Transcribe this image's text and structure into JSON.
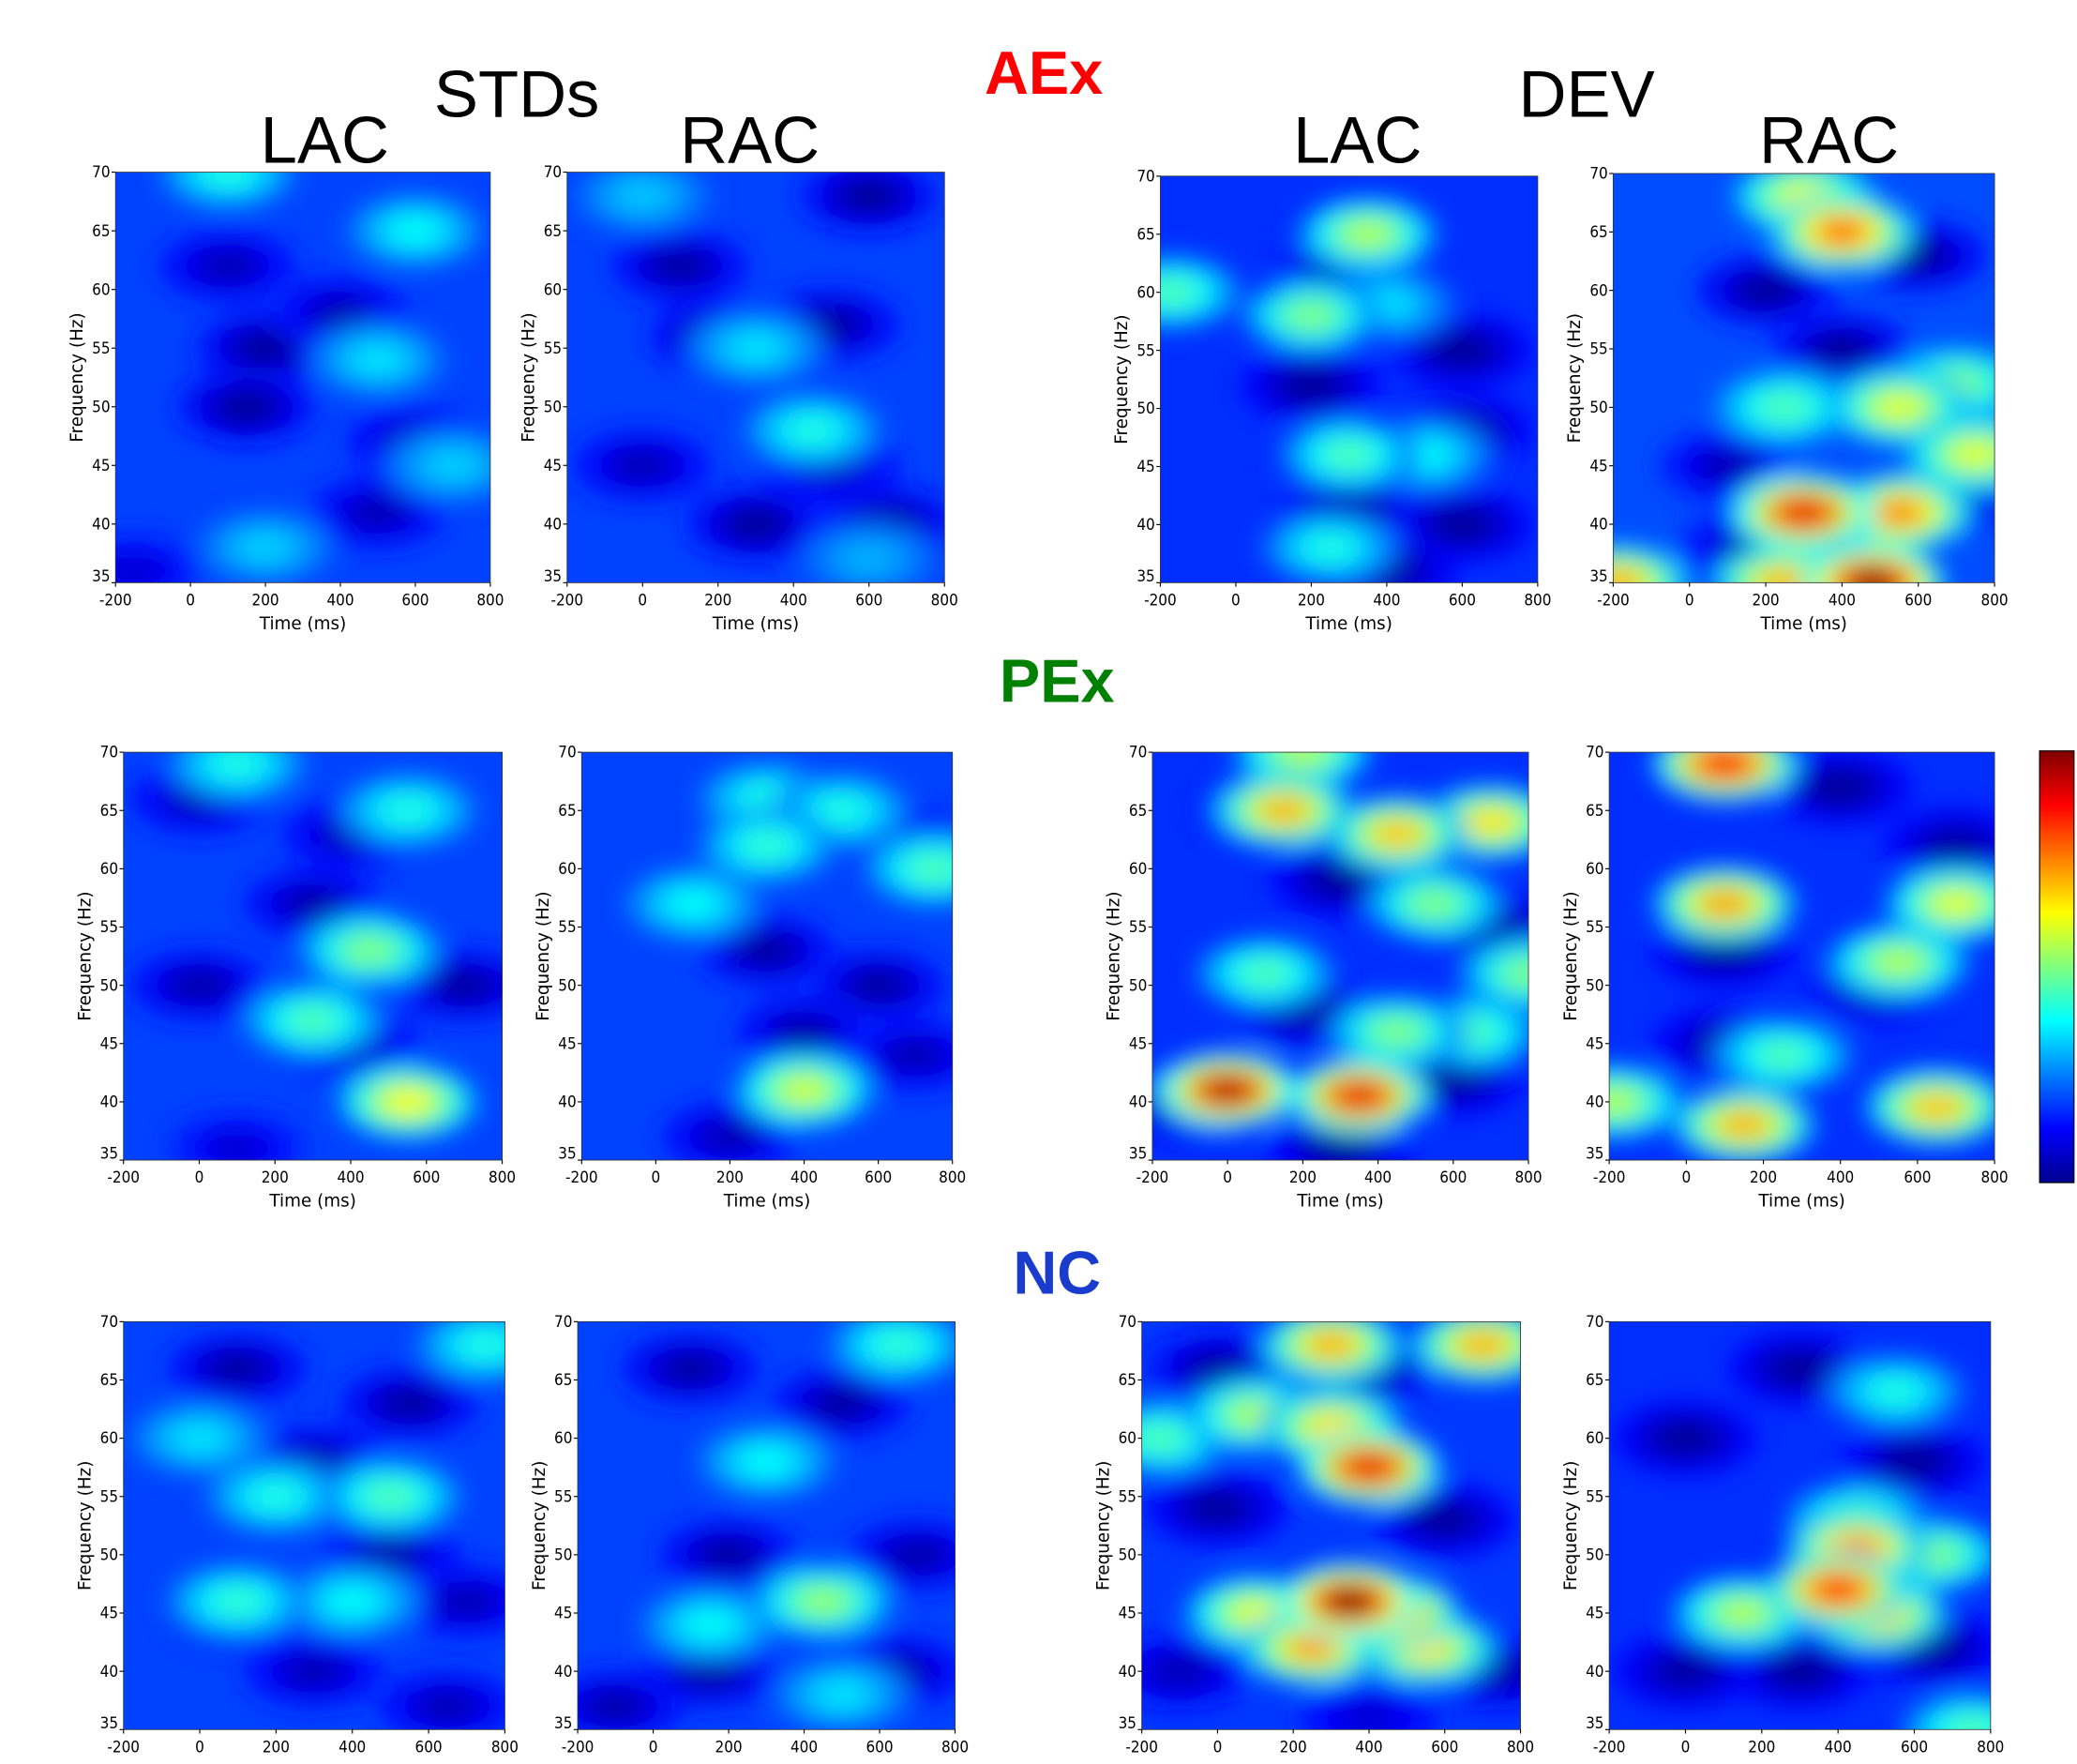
{
  "figure": {
    "groups": [
      "AEx",
      "PEx",
      "NC"
    ],
    "conditions": [
      "STDs",
      "DEV"
    ],
    "columns": [
      "LAC",
      "RAC",
      "LAC",
      "RAC"
    ]
  },
  "chart_data": [
    {
      "type": "heatmap",
      "xlabel": "Time (ms)",
      "ylabel": "Frequency (Hz)",
      "xlim": [
        -200,
        800
      ],
      "ylim": [
        35,
        70
      ],
      "xticks": [
        -200,
        0,
        200,
        400,
        600,
        800
      ],
      "yticks": [
        35,
        40,
        45,
        50,
        55,
        60,
        65,
        70
      ],
      "base": 0.19,
      "hotspots": [
        [
          200,
          55,
          0.02
        ],
        [
          150,
          50,
          0.02
        ],
        [
          400,
          58,
          0.05
        ],
        [
          100,
          62,
          0.05
        ],
        [
          600,
          47,
          0.05
        ],
        [
          500,
          41,
          0.05
        ],
        [
          -150,
          36,
          0.08
        ],
        [
          100,
          70,
          0.4
        ],
        [
          600,
          65,
          0.38
        ],
        [
          500,
          54,
          0.35
        ],
        [
          200,
          38,
          0.33
        ],
        [
          700,
          45,
          0.33
        ]
      ]
    },
    {
      "type": "heatmap",
      "xlabel": "Time (ms)",
      "ylabel": "Frequency (Hz)",
      "xlim": [
        -200,
        800
      ],
      "ylim": [
        35,
        70
      ],
      "xticks": [
        -200,
        0,
        200,
        400,
        600,
        800
      ],
      "yticks": [
        35,
        40,
        45,
        50,
        55,
        60,
        65,
        70
      ],
      "base": 0.19,
      "hotspots": [
        [
          600,
          68,
          0.02
        ],
        [
          200,
          56,
          0.02
        ],
        [
          500,
          57,
          0.03
        ],
        [
          100,
          62,
          0.03
        ],
        [
          300,
          40,
          0.02
        ],
        [
          650,
          40,
          0.02
        ],
        [
          0,
          45,
          0.05
        ],
        [
          500,
          45,
          0.05
        ],
        [
          600,
          37,
          0.3
        ],
        [
          0,
          68,
          0.32
        ],
        [
          300,
          55,
          0.35
        ],
        [
          450,
          48,
          0.4
        ]
      ]
    },
    {
      "type": "heatmap",
      "xlabel": "Time (ms)",
      "ylabel": "Frequency (Hz)",
      "xlim": [
        -200,
        800
      ],
      "ylim": [
        35,
        70
      ],
      "xticks": [
        -200,
        0,
        200,
        400,
        600,
        800
      ],
      "yticks": [
        35,
        40,
        45,
        50,
        55,
        60,
        65,
        70
      ],
      "base": 0.17,
      "hotspots": [
        [
          300,
          62,
          0.02
        ],
        [
          600,
          55,
          0.02
        ],
        [
          200,
          52,
          0.02
        ],
        [
          600,
          48,
          0.02
        ],
        [
          300,
          41,
          0.02
        ],
        [
          600,
          40,
          0.02
        ],
        [
          400,
          36,
          0.02
        ],
        [
          400,
          59,
          0.35
        ],
        [
          500,
          46,
          0.38
        ],
        [
          250,
          38,
          0.4
        ],
        [
          300,
          46,
          0.45
        ],
        [
          -170,
          60,
          0.45
        ],
        [
          200,
          58,
          0.5
        ],
        [
          350,
          65,
          0.55
        ]
      ]
    },
    {
      "type": "heatmap",
      "xlabel": "Time (ms)",
      "ylabel": "Frequency (Hz)",
      "xlim": [
        -200,
        800
      ],
      "ylim": [
        35,
        70
      ],
      "xticks": [
        -200,
        0,
        200,
        400,
        600,
        800
      ],
      "yticks": [
        35,
        40,
        45,
        50,
        55,
        60,
        65,
        70
      ],
      "base": 0.2,
      "hotspots": [
        [
          200,
          60,
          0.02
        ],
        [
          600,
          63,
          0.02
        ],
        [
          400,
          55,
          0.02
        ],
        [
          650,
          42,
          0.02
        ],
        [
          150,
          38,
          0.05
        ],
        [
          100,
          45,
          0.05
        ],
        [
          250,
          50,
          0.45
        ],
        [
          700,
          52,
          0.5
        ],
        [
          300,
          68,
          0.6
        ],
        [
          550,
          50,
          0.6
        ],
        [
          750,
          46,
          0.6
        ],
        [
          250,
          35,
          0.7
        ],
        [
          -190,
          35,
          0.7
        ],
        [
          550,
          41,
          0.75
        ],
        [
          400,
          65,
          0.78
        ],
        [
          300,
          41,
          0.9
        ],
        [
          480,
          35,
          1.0
        ]
      ]
    },
    {
      "type": "heatmap",
      "xlabel": "Time (ms)",
      "ylabel": "Frequency (Hz)",
      "xlim": [
        -200,
        800
      ],
      "ylim": [
        35,
        70
      ],
      "xticks": [
        -200,
        0,
        200,
        400,
        600,
        800
      ],
      "yticks": [
        35,
        40,
        45,
        50,
        55,
        60,
        65,
        70
      ],
      "base": 0.19,
      "hotspots": [
        [
          0,
          66,
          0.05
        ],
        [
          400,
          63,
          0.05
        ],
        [
          300,
          57,
          0.04
        ],
        [
          0,
          50,
          0.04
        ],
        [
          700,
          50,
          0.03
        ],
        [
          400,
          45,
          0.05
        ],
        [
          100,
          36,
          0.08
        ],
        [
          550,
          65,
          0.4
        ],
        [
          100,
          69,
          0.4
        ],
        [
          300,
          47,
          0.45
        ],
        [
          450,
          53,
          0.5
        ],
        [
          550,
          40,
          0.62
        ]
      ]
    },
    {
      "type": "heatmap",
      "xlabel": "Time (ms)",
      "ylabel": "Frequency (Hz)",
      "xlim": [
        -200,
        800
      ],
      "ylim": [
        35,
        70
      ],
      "xticks": [
        -200,
        0,
        200,
        400,
        600,
        800
      ],
      "yticks": [
        35,
        40,
        45,
        50,
        55,
        60,
        65,
        70
      ],
      "base": 0.19,
      "hotspots": [
        [
          300,
          53,
          0.03
        ],
        [
          600,
          50,
          0.03
        ],
        [
          400,
          46,
          0.04
        ],
        [
          200,
          37,
          0.05
        ],
        [
          700,
          44,
          0.05
        ],
        [
          700,
          62,
          0.08
        ],
        [
          100,
          57,
          0.38
        ],
        [
          300,
          66,
          0.4
        ],
        [
          500,
          65,
          0.4
        ],
        [
          300,
          62,
          0.42
        ],
        [
          750,
          60,
          0.45
        ],
        [
          400,
          41,
          0.58
        ]
      ]
    },
    {
      "type": "heatmap",
      "xlabel": "Time (ms)",
      "ylabel": "Frequency (Hz)",
      "xlim": [
        -200,
        800
      ],
      "ylim": [
        35,
        70
      ],
      "xticks": [
        -200,
        0,
        200,
        400,
        600,
        800
      ],
      "yticks": [
        35,
        40,
        45,
        50,
        55,
        60,
        65,
        70
      ],
      "base": 0.17,
      "hotspots": [
        [
          300,
          59,
          0.02
        ],
        [
          700,
          55,
          0.02
        ],
        [
          200,
          48,
          0.02
        ],
        [
          600,
          42,
          0.02
        ],
        [
          300,
          36,
          0.02
        ],
        [
          -100,
          40,
          0.03
        ],
        [
          100,
          65,
          0.1
        ],
        [
          100,
          51,
          0.45
        ],
        [
          650,
          46,
          0.45
        ],
        [
          450,
          46,
          0.5
        ],
        [
          550,
          57,
          0.5
        ],
        [
          800,
          51,
          0.5
        ],
        [
          200,
          70,
          0.55
        ],
        [
          700,
          64,
          0.65
        ],
        [
          450,
          63,
          0.68
        ],
        [
          150,
          65,
          0.7
        ],
        [
          350,
          40.5,
          0.9
        ],
        [
          0,
          41,
          0.95
        ]
      ]
    },
    {
      "type": "heatmap",
      "xlabel": "Time (ms)",
      "ylabel": "Frequency (Hz)",
      "xlim": [
        -200,
        800
      ],
      "ylim": [
        35,
        70
      ],
      "xticks": [
        -200,
        0,
        200,
        400,
        600,
        800
      ],
      "yticks": [
        35,
        40,
        45,
        50,
        55,
        60,
        65,
        70
      ],
      "base": 0.17,
      "hotspots": [
        [
          400,
          67,
          0.02
        ],
        [
          100,
          53,
          0.02
        ],
        [
          500,
          50,
          0.02
        ],
        [
          650,
          40,
          0.02
        ],
        [
          100,
          45,
          0.03
        ],
        [
          700,
          62,
          0.03
        ],
        [
          250,
          44,
          0.45
        ],
        [
          550,
          52,
          0.55
        ],
        [
          -190,
          40,
          0.55
        ],
        [
          700,
          57,
          0.6
        ],
        [
          650,
          39.5,
          0.68
        ],
        [
          150,
          38,
          0.7
        ],
        [
          100,
          57,
          0.72
        ],
        [
          100,
          69,
          0.88
        ]
      ]
    },
    {
      "type": "heatmap",
      "ylabel": "Frequency (Hz)",
      "xlim": [
        -200,
        800
      ],
      "ylim": [
        35,
        70
      ],
      "xticks": [
        -200,
        0,
        200,
        400,
        600,
        800
      ],
      "yticks": [
        35,
        40,
        45,
        50,
        55,
        60,
        65,
        70
      ],
      "base": 0.19,
      "hotspots": [
        [
          100,
          66,
          0.03
        ],
        [
          550,
          63,
          0.03
        ],
        [
          300,
          58,
          0.04
        ],
        [
          500,
          50,
          0.04
        ],
        [
          100,
          45,
          0.05
        ],
        [
          300,
          40,
          0.05
        ],
        [
          700,
          46,
          0.05
        ],
        [
          650,
          37,
          0.05
        ],
        [
          0,
          60,
          0.35
        ],
        [
          400,
          46,
          0.38
        ],
        [
          200,
          55,
          0.4
        ],
        [
          750,
          68,
          0.4
        ],
        [
          100,
          46,
          0.42
        ],
        [
          500,
          55,
          0.45
        ]
      ]
    },
    {
      "type": "heatmap",
      "ylabel": "Frequency (Hz)",
      "xlim": [
        -200,
        800
      ],
      "ylim": [
        35,
        70
      ],
      "xticks": [
        -200,
        0,
        200,
        400,
        600,
        800
      ],
      "yticks": [
        35,
        40,
        45,
        50,
        55,
        60,
        65,
        70
      ],
      "base": 0.19,
      "hotspots": [
        [
          100,
          66,
          0.03
        ],
        [
          500,
          63,
          0.03
        ],
        [
          200,
          50,
          0.03
        ],
        [
          150,
          40,
          0.03
        ],
        [
          700,
          50,
          0.04
        ],
        [
          650,
          40,
          0.04
        ],
        [
          -100,
          37,
          0.04
        ],
        [
          500,
          38,
          0.35
        ],
        [
          300,
          58,
          0.38
        ],
        [
          150,
          44,
          0.38
        ],
        [
          650,
          68,
          0.42
        ],
        [
          450,
          46,
          0.52
        ]
      ]
    },
    {
      "type": "heatmap",
      "ylabel": "Frequency (Hz)",
      "xlim": [
        -200,
        800
      ],
      "ylim": [
        35,
        70
      ],
      "xticks": [
        -200,
        0,
        200,
        400,
        600,
        800
      ],
      "yticks": [
        35,
        40,
        45,
        50,
        55,
        60,
        65,
        70
      ],
      "base": 0.18,
      "hotspots": [
        [
          0,
          54,
          0.02
        ],
        [
          600,
          53,
          0.02
        ],
        [
          400,
          66,
          0.03
        ],
        [
          0,
          66,
          0.03
        ],
        [
          -100,
          40,
          0.05
        ],
        [
          750,
          40,
          0.04
        ],
        [
          400,
          36,
          0.08
        ],
        [
          -150,
          60,
          0.45
        ],
        [
          100,
          62,
          0.55
        ],
        [
          100,
          45,
          0.6
        ],
        [
          550,
          42,
          0.65
        ],
        [
          300,
          61,
          0.65
        ],
        [
          300,
          68,
          0.7
        ],
        [
          700,
          68,
          0.7
        ],
        [
          250,
          42,
          0.72
        ],
        [
          450,
          45,
          0.85
        ],
        [
          400,
          57.5,
          0.9
        ],
        [
          350,
          46,
          1.0
        ]
      ]
    },
    {
      "type": "heatmap",
      "ylabel": "Frequency (Hz)",
      "xlim": [
        -200,
        800
      ],
      "ylim": [
        35,
        70
      ],
      "xticks": [
        -200,
        0,
        200,
        400,
        600,
        800
      ],
      "yticks": [
        35,
        40,
        45,
        50,
        55,
        60,
        65,
        70
      ],
      "base": 0.17,
      "hotspots": [
        [
          0,
          60,
          0.02
        ],
        [
          300,
          66,
          0.02
        ],
        [
          600,
          58,
          0.02
        ],
        [
          300,
          40,
          0.02
        ],
        [
          650,
          42,
          0.02
        ],
        [
          0,
          40,
          0.03
        ],
        [
          550,
          64,
          0.4
        ],
        [
          750,
          35,
          0.45
        ],
        [
          450,
          53,
          0.48
        ],
        [
          650,
          50,
          0.5
        ],
        [
          150,
          45,
          0.55
        ],
        [
          500,
          45,
          0.7
        ],
        [
          450,
          50.5,
          0.75
        ],
        [
          400,
          47,
          0.85
        ]
      ]
    }
  ]
}
